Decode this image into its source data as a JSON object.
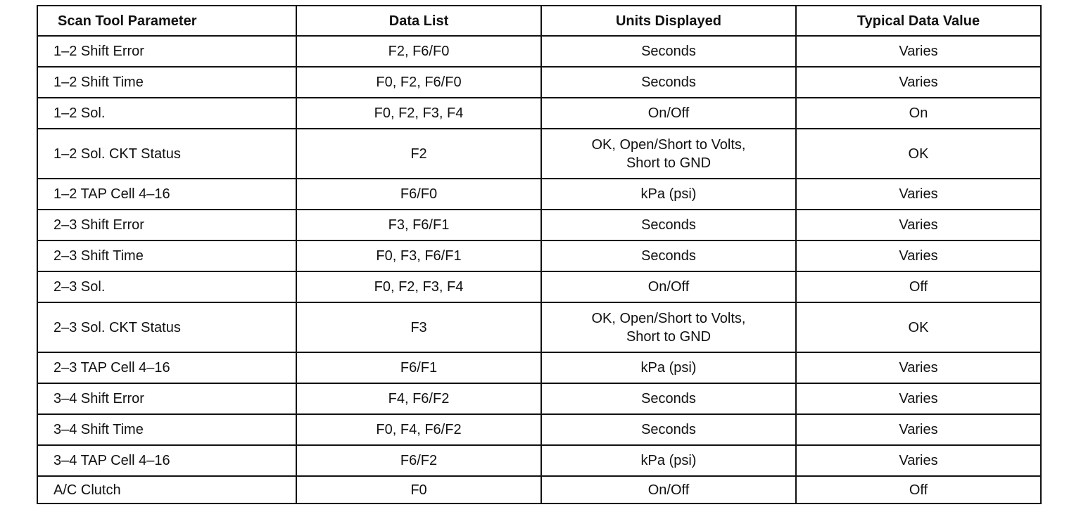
{
  "table": {
    "headers": [
      "Scan Tool Parameter",
      "Data List",
      "Units Displayed",
      "Typical Data Value"
    ],
    "rows": [
      [
        "1–2 Shift Error",
        "F2, F6/F0",
        "Seconds",
        "Varies"
      ],
      [
        "1–2 Shift Time",
        "F0, F2, F6/F0",
        "Seconds",
        "Varies"
      ],
      [
        "1–2 Sol.",
        "F0, F2, F3, F4",
        "On/Off",
        "On"
      ],
      [
        "1–2 Sol. CKT Status",
        "F2",
        "OK, Open/Short to Volts, Short to GND",
        "OK"
      ],
      [
        "1–2 TAP Cell 4–16",
        "F6/F0",
        "kPa (psi)",
        "Varies"
      ],
      [
        "2–3 Shift Error",
        "F3, F6/F1",
        "Seconds",
        "Varies"
      ],
      [
        "2–3 Shift Time",
        "F0, F3, F6/F1",
        "Seconds",
        "Varies"
      ],
      [
        "2–3 Sol.",
        "F0, F2, F3, F4",
        "On/Off",
        "Off"
      ],
      [
        "2–3 Sol. CKT Status",
        "F3",
        "OK, Open/Short to Volts, Short to GND",
        "OK"
      ],
      [
        "2–3 TAP Cell 4–16",
        "F6/F1",
        "kPa (psi)",
        "Varies"
      ],
      [
        "3–4 Shift Error",
        "F4, F6/F2",
        "Seconds",
        "Varies"
      ],
      [
        "3–4 Shift Time",
        "F0, F4, F6/F2",
        "Seconds",
        "Varies"
      ],
      [
        "3–4 TAP Cell 4–16",
        "F6/F2",
        "kPa (psi)",
        "Varies"
      ],
      [
        "A/C Clutch",
        "F0",
        "On/Off",
        "Off"
      ]
    ]
  }
}
